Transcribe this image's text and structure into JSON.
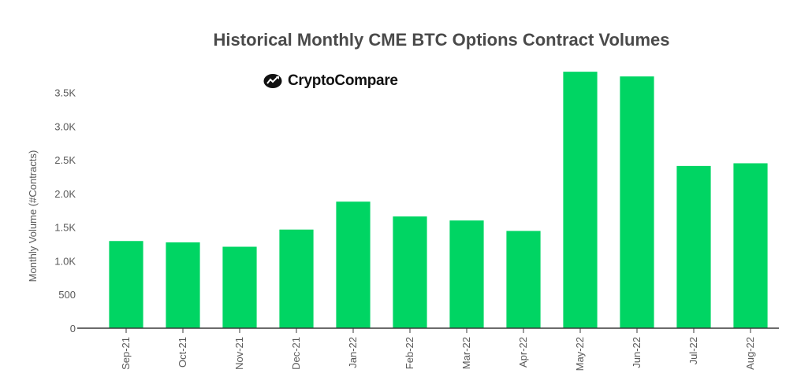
{
  "chart_data": {
    "type": "bar",
    "title": "Historical Monthly CME BTC Options Contract Volumes",
    "xlabel": "",
    "ylabel": "Monthly Volume (#Contracts)",
    "ylim": [
      0,
      3800
    ],
    "yticks": [
      0,
      500,
      1000,
      1500,
      2000,
      2500,
      3000,
      3500
    ],
    "ytick_labels": [
      "0",
      "500",
      "1.0K",
      "1.5K",
      "2.0K",
      "2.5K",
      "3.0K",
      "3.5K"
    ],
    "categories": [
      "Sep-21",
      "Oct-21",
      "Nov-21",
      "Dec-21",
      "Jan-22",
      "Feb-22",
      "Mar-22",
      "Apr-22",
      "May-22",
      "Jun-22",
      "Jul-22",
      "Aug-22"
    ],
    "values": [
      1295,
      1275,
      1210,
      1465,
      1880,
      1660,
      1600,
      1445,
      3810,
      3740,
      2410,
      2450
    ],
    "bar_color": "#00d563",
    "grid": false,
    "legend": "none"
  },
  "logo": {
    "word1": "Crypto",
    "word2": "Compare",
    "icon": "cryptocompare-logo-icon"
  }
}
